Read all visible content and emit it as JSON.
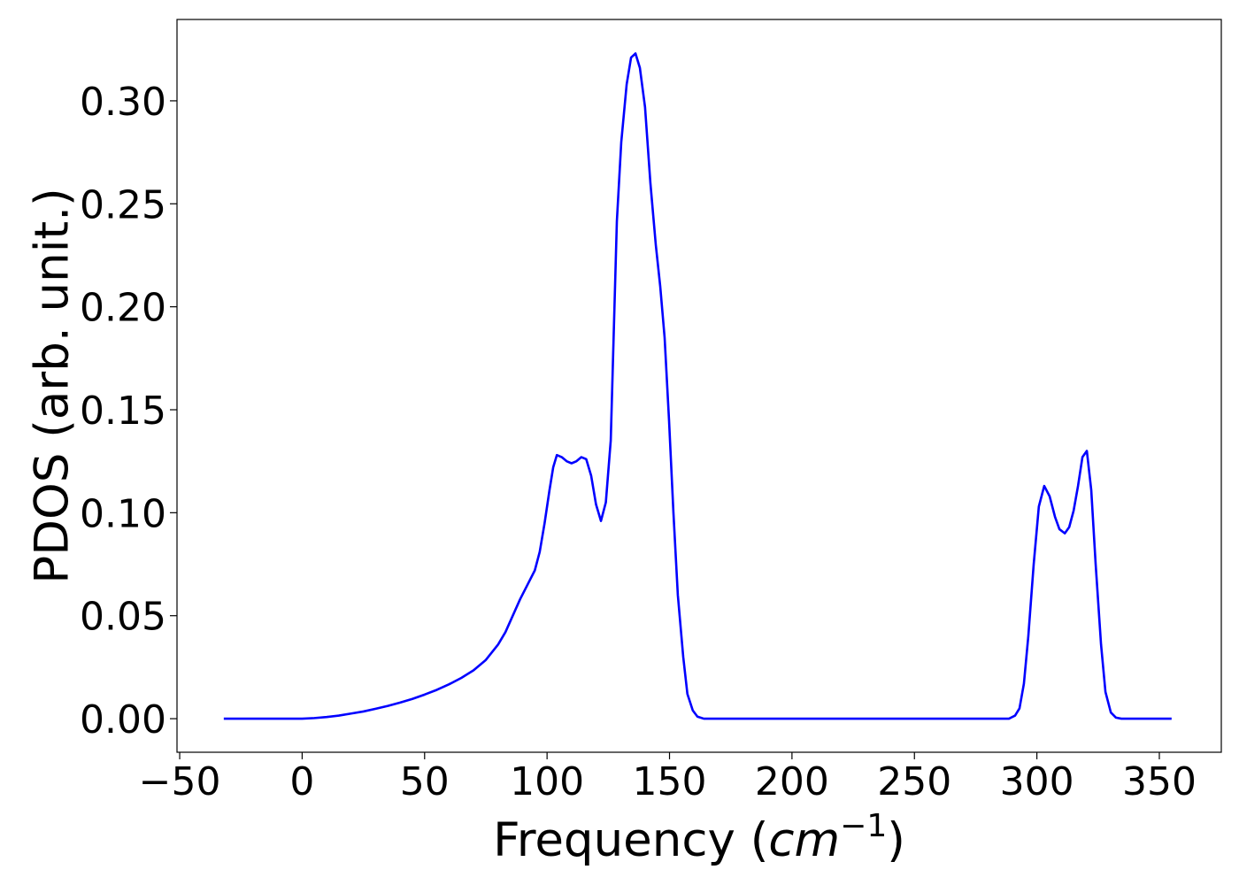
{
  "chart_data": {
    "type": "line",
    "xlabel": [
      "Frequency (",
      "cm",
      "−1",
      ")"
    ],
    "ylabel": "PDOS (arb. unit.)",
    "x": [
      -32,
      -20,
      -10,
      0,
      5,
      10,
      15,
      20,
      25,
      30,
      35,
      40,
      45,
      50,
      55,
      60,
      65,
      70,
      75,
      80,
      83,
      86,
      89,
      92,
      95,
      97,
      99,
      101,
      102.5,
      104,
      106,
      108,
      110,
      112,
      114,
      116,
      118,
      120,
      122,
      124,
      126,
      128.5,
      130.3,
      132.5,
      134.3,
      136.1,
      137.9,
      140,
      142.2,
      144.4,
      146.2,
      148,
      149.8,
      151.6,
      153.4,
      155.6,
      157.3,
      159.5,
      161.4,
      164,
      200,
      250,
      288.6,
      291.1,
      292.9,
      294.7,
      296.5,
      298.7,
      300.8,
      303,
      305.2,
      307.4,
      309.2,
      311.4,
      313.2,
      315,
      316.8,
      318.6,
      320.4,
      322.2,
      324,
      326.2,
      328,
      330.2,
      332.3,
      334.5,
      355
    ],
    "values": [
      0,
      0,
      0,
      0,
      0.0003,
      0.0008,
      0.0015,
      0.0025,
      0.0035,
      0.0048,
      0.0062,
      0.0078,
      0.0096,
      0.0117,
      0.014,
      0.0167,
      0.0198,
      0.0235,
      0.0285,
      0.036,
      0.042,
      0.05,
      0.058,
      0.065,
      0.072,
      0.081,
      0.095,
      0.111,
      0.122,
      0.128,
      0.127,
      0.125,
      0.124,
      0.125,
      0.127,
      0.126,
      0.118,
      0.104,
      0.096,
      0.105,
      0.135,
      0.2415,
      0.28,
      0.308,
      0.321,
      0.323,
      0.316,
      0.297,
      0.26,
      0.23,
      0.21,
      0.185,
      0.145,
      0.1,
      0.06,
      0.03,
      0.012,
      0.004,
      0.001,
      0,
      0,
      0,
      0,
      0.0015,
      0.005,
      0.017,
      0.04,
      0.075,
      0.103,
      0.113,
      0.108,
      0.098,
      0.092,
      0.09,
      0.093,
      0.101,
      0.113,
      0.127,
      0.13,
      0.111,
      0.075,
      0.036,
      0.013,
      0.003,
      0.0005,
      0,
      0
    ],
    "color": "#0000ff",
    "xlim": [
      -51.1,
      375.3
    ],
    "ylim": [
      -0.0163,
      0.3395
    ],
    "xticks": [
      {
        "value": -50,
        "label": "−50"
      },
      0,
      50,
      100,
      150,
      200,
      250,
      300,
      350
    ],
    "yticks": [
      {
        "value": 0,
        "label": "0.00"
      },
      {
        "value": 0.05,
        "label": "0.05"
      },
      {
        "value": 0.1,
        "label": "0.10"
      },
      {
        "value": 0.15,
        "label": "0.15"
      },
      {
        "value": 0.2,
        "label": "0.20"
      },
      {
        "value": 0.25,
        "label": "0.25"
      },
      {
        "value": 0.3,
        "label": "0.30"
      }
    ]
  }
}
